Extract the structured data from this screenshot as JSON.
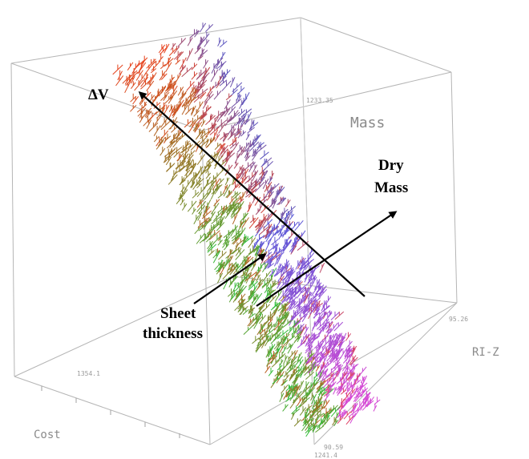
{
  "chart_data": {
    "type": "scatter",
    "title": "",
    "axes": {
      "vertical": "Mass",
      "depth": "RI-Z",
      "front": "Cost"
    },
    "tick_labels": {
      "mass_max": "1233.35",
      "cost_near": "1354.1",
      "riz_near": "90.59",
      "riz_far": "95.26",
      "origin": "1241.4"
    },
    "colors": {
      "red": "#e8401c",
      "green": "#2fbf3a",
      "blue": "#4a5ad6",
      "magenta": "#d448d4"
    },
    "annotations": {
      "delta_v": "ΔV",
      "dry_mass_line1": "Dry",
      "dry_mass_line2": "Mass",
      "sheet_line1": "Sheet",
      "sheet_line2": "thickness"
    }
  }
}
